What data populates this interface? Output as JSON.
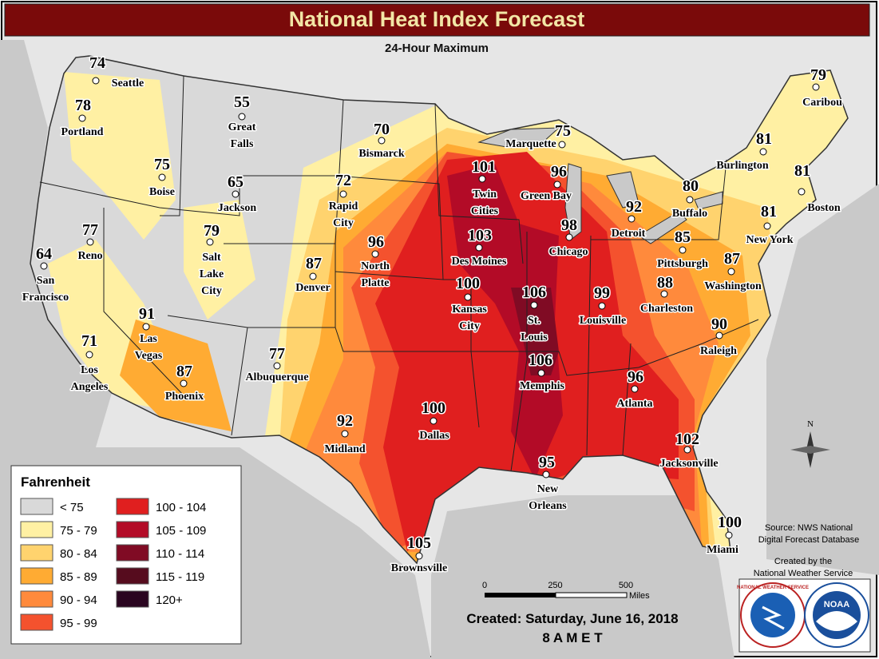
{
  "header": {
    "title": "National Heat Index Forecast",
    "subtitle": "24-Hour Maximum"
  },
  "cities": [
    {
      "name": [
        "Seattle"
      ],
      "value": 74
    },
    {
      "name": [
        "Portland"
      ],
      "value": 78
    },
    {
      "name": [
        "Boise"
      ],
      "value": 75
    },
    {
      "name": [
        "Great",
        "Falls"
      ],
      "value": 55
    },
    {
      "name": [
        "Bismarck"
      ],
      "value": 70
    },
    {
      "name": [
        "Jackson"
      ],
      "value": 65
    },
    {
      "name": [
        "Rapid",
        "City"
      ],
      "value": 72
    },
    {
      "name": [
        "Reno"
      ],
      "value": 77
    },
    {
      "name": [
        "San",
        "Francisco"
      ],
      "value": 64
    },
    {
      "name": [
        "Salt",
        "Lake",
        "City"
      ],
      "value": 79
    },
    {
      "name": [
        "Denver"
      ],
      "value": 87
    },
    {
      "name": [
        "North",
        "Platte"
      ],
      "value": 96
    },
    {
      "name": [
        "Des Moines"
      ],
      "value": 103
    },
    {
      "name": [
        "Twin",
        "Cities"
      ],
      "value": 101
    },
    {
      "name": [
        "Green Bay"
      ],
      "value": 96
    },
    {
      "name": [
        "Marquette"
      ],
      "value": 75
    },
    {
      "name": [
        "Chicago"
      ],
      "value": 98
    },
    {
      "name": [
        "Detroit"
      ],
      "value": 92
    },
    {
      "name": [
        "Buffalo"
      ],
      "value": 80
    },
    {
      "name": [
        "Burlington"
      ],
      "value": 81
    },
    {
      "name": [
        "Caribou"
      ],
      "value": 79
    },
    {
      "name": [
        "Boston"
      ],
      "value": 81
    },
    {
      "name": [
        "New York"
      ],
      "value": 81
    },
    {
      "name": [
        "Pittsburgh"
      ],
      "value": 85
    },
    {
      "name": [
        "Washington"
      ],
      "value": 87
    },
    {
      "name": [
        "Charleston"
      ],
      "value": 88
    },
    {
      "name": [
        "Kansas",
        "City"
      ],
      "value": 100
    },
    {
      "name": [
        "St.",
        "Louis"
      ],
      "value": 106
    },
    {
      "name": [
        "Louisville"
      ],
      "value": 99
    },
    {
      "name": [
        "Raleigh"
      ],
      "value": 90
    },
    {
      "name": [
        "Memphis"
      ],
      "value": 106
    },
    {
      "name": [
        "Atlanta"
      ],
      "value": 96
    },
    {
      "name": [
        "Albuquerque"
      ],
      "value": 77
    },
    {
      "name": [
        "Phoenix"
      ],
      "value": 87
    },
    {
      "name": [
        "Las",
        "Vegas"
      ],
      "value": 91
    },
    {
      "name": [
        "Los",
        "Angeles"
      ],
      "value": 71
    },
    {
      "name": [
        "Midland"
      ],
      "value": 92
    },
    {
      "name": [
        "Dallas"
      ],
      "value": 100
    },
    {
      "name": [
        "Jacksonville"
      ],
      "value": 102
    },
    {
      "name": [
        "New",
        "Orleans"
      ],
      "value": 95
    },
    {
      "name": [
        "Brownsville"
      ],
      "value": 105
    },
    {
      "name": [
        "Miami"
      ],
      "value": 100
    }
  ],
  "legend": {
    "title": "Fahrenheit",
    "items": [
      {
        "label": "< 75",
        "color": "#d9d9d9"
      },
      {
        "label": "75 - 79",
        "color": "#fff0a3"
      },
      {
        "label": "80 - 84",
        "color": "#ffd36e"
      },
      {
        "label": "85 - 89",
        "color": "#ffab33"
      },
      {
        "label": "90 - 94",
        "color": "#ff8a3c"
      },
      {
        "label": "95 - 99",
        "color": "#f4522e"
      },
      {
        "label": "100 - 104",
        "color": "#e01f1f"
      },
      {
        "label": "105 - 109",
        "color": "#b30b27"
      },
      {
        "label": "110 - 114",
        "color": "#800b24"
      },
      {
        "label": "115 - 119",
        "color": "#560c1e"
      },
      {
        "label": "120+",
        "color": "#2a0520"
      }
    ]
  },
  "source": [
    "Source: NWS National",
    "Digital Forecast Database"
  ],
  "credit": [
    "Created by the",
    "National Weather Service"
  ],
  "scale": {
    "ticks": [
      "0",
      "250",
      "500"
    ],
    "unit": "Miles"
  },
  "created": "Created: Saturday, June 16, 2018",
  "time": "8 A M E T",
  "compass": "N",
  "logos": [
    "NATIONAL WEATHER SERVICE",
    "NOAA"
  ]
}
